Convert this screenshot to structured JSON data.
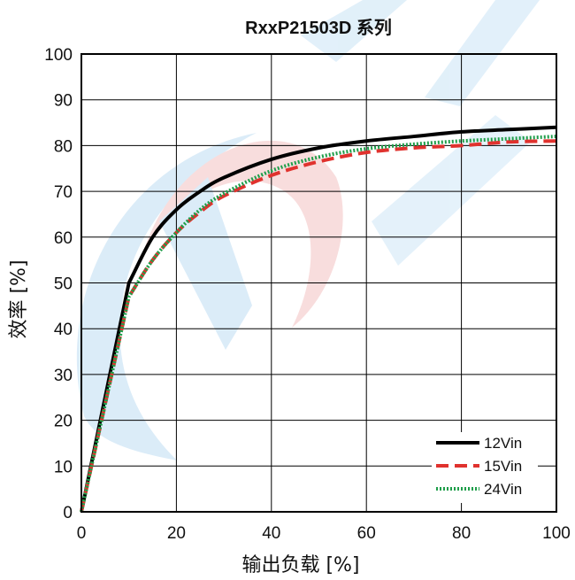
{
  "chart_data": {
    "type": "line",
    "title": "RxxP21503D 系列",
    "xlabel": "输出负载 [%]",
    "ylabel": "效率 [%]",
    "xlim": [
      0,
      100
    ],
    "ylim": [
      0,
      100
    ],
    "xticks": [
      0,
      20,
      40,
      60,
      80,
      100
    ],
    "yticks": [
      0,
      10,
      20,
      30,
      40,
      50,
      60,
      70,
      80,
      90,
      100
    ],
    "grid": true,
    "legend_position": "bottom-right",
    "series": [
      {
        "name": "12Vin",
        "color": "#000000",
        "style": "solid",
        "x": [
          0,
          10,
          15,
          20,
          25,
          30,
          40,
          50,
          60,
          70,
          80,
          90,
          100
        ],
        "y": [
          0,
          50,
          60,
          66,
          70,
          73,
          77,
          79.5,
          81,
          82,
          83,
          83.5,
          84
        ]
      },
      {
        "name": "15Vin",
        "color": "#e0322e",
        "style": "dashed",
        "x": [
          0,
          10,
          15,
          20,
          25,
          30,
          40,
          50,
          60,
          70,
          80,
          90,
          100
        ],
        "y": [
          0,
          47,
          55,
          61,
          65.5,
          69,
          73.5,
          76.5,
          78.5,
          79.5,
          80,
          80.8,
          81
        ]
      },
      {
        "name": "24Vin",
        "color": "#1f9e4a",
        "style": "dotted",
        "x": [
          0,
          10,
          15,
          20,
          25,
          30,
          40,
          50,
          60,
          70,
          80,
          90,
          100
        ],
        "y": [
          0,
          47,
          55,
          61,
          66,
          69.5,
          74.5,
          77.5,
          79.3,
          80.3,
          81,
          81.5,
          82
        ]
      }
    ]
  }
}
